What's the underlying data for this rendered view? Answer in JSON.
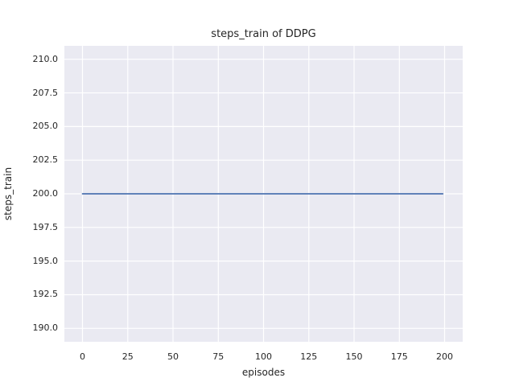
{
  "colors": {
    "figure_background": "#ffffff",
    "axes_background": "#eaeaf2",
    "grid": "#ffffff",
    "line": "#4c72b0",
    "text": "#262626"
  },
  "chart_data": {
    "type": "line",
    "title": "steps_train of DDPG",
    "xlabel": "episodes",
    "ylabel": "steps_train",
    "xlim": [
      -10,
      210
    ],
    "ylim": [
      189,
      211
    ],
    "grid": true,
    "legend": "none",
    "xticks": [
      0,
      25,
      50,
      75,
      100,
      125,
      150,
      175,
      200
    ],
    "xtick_labels": [
      "0",
      "25",
      "50",
      "75",
      "100",
      "125",
      "150",
      "175",
      "200"
    ],
    "yticks": [
      190.0,
      192.5,
      195.0,
      197.5,
      200.0,
      202.5,
      205.0,
      207.5,
      210.0
    ],
    "ytick_labels": [
      "190.0",
      "192.5",
      "195.0",
      "197.5",
      "200.0",
      "202.5",
      "205.0",
      "207.5",
      "210.0"
    ],
    "series": [
      {
        "name": "steps_train",
        "color": "#4c72b0",
        "x": [
          0,
          199
        ],
        "y": [
          200,
          200
        ],
        "description": "constant value 200 for every episode from 0 to 199"
      }
    ]
  }
}
